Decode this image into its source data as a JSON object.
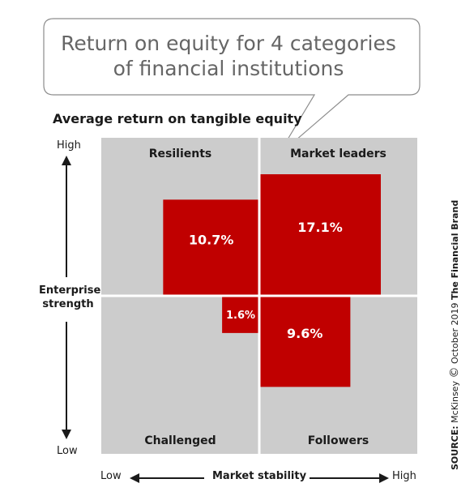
{
  "chart_data": {
    "type": "bar",
    "title": "Return on equity for 4 categories of financial institutions",
    "subtitle": "Average return on tangible equity",
    "y_axis": {
      "label": "Enterprise strength",
      "low": "Low",
      "high": "High"
    },
    "x_axis": {
      "label": "Market stability",
      "low": "Low",
      "high": "High"
    },
    "categories": [
      "Resilients",
      "Market leaders",
      "Challenged",
      "Followers"
    ],
    "values": [
      10.7,
      17.1,
      1.6,
      9.6
    ],
    "value_labels": [
      "10.7%",
      "17.1%",
      "1.6%",
      "9.6%"
    ],
    "unit": "%",
    "colors": {
      "bar": "#c00000",
      "quadrant": "#cccccc",
      "divider": "#ffffff"
    }
  },
  "source": {
    "prefix": "SOURCE:",
    "text": "McKinsey",
    "symbol": "©",
    "date": "October 2019",
    "brand": "The Financial Brand"
  }
}
